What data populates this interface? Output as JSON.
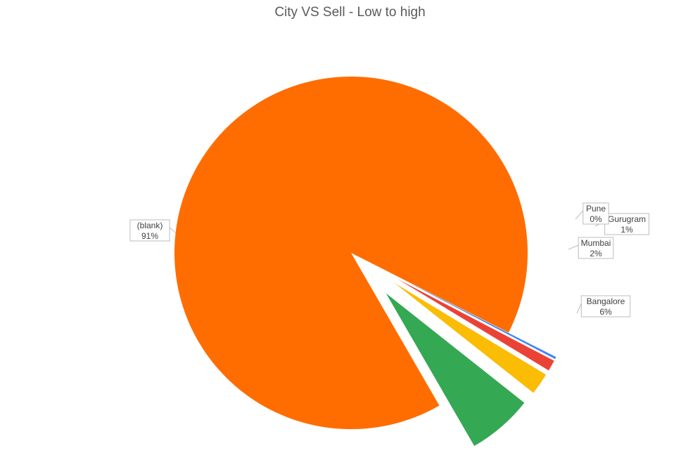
{
  "chart_data": {
    "type": "pie",
    "title": "City VS Sell - Low to high",
    "slices": [
      {
        "label": "Bangalore",
        "value": 6,
        "value_label": "6%",
        "color": "#34a853",
        "exploded": true
      },
      {
        "label": "Mumbai",
        "value": 2,
        "value_label": "2%",
        "color": "#fbbc04",
        "exploded": true
      },
      {
        "label": "Gurugram",
        "value": 1,
        "value_label": "1%",
        "color": "#ea4335",
        "exploded": true
      },
      {
        "label": "Pune",
        "value": 0.2,
        "value_label": "0%",
        "color": "#4285f4",
        "exploded": true
      },
      {
        "label": "(blank)",
        "value": 90.8,
        "value_label": "91%",
        "color": "#ff6d01",
        "exploded": false
      }
    ],
    "legend": "none"
  }
}
